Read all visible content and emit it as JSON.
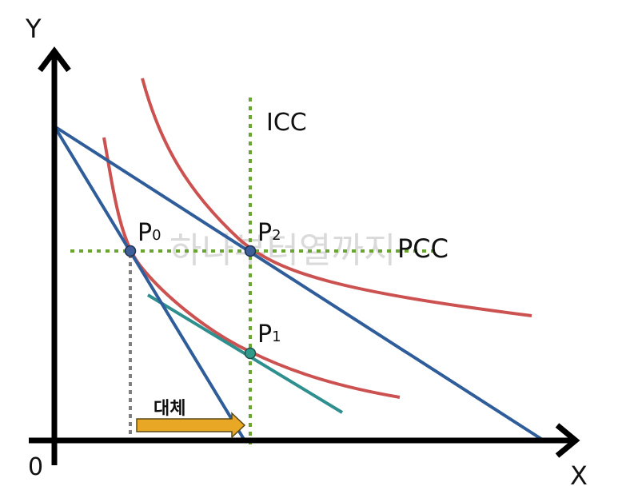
{
  "axes": {
    "y_label": "Y",
    "x_label": "X",
    "origin_label": "0"
  },
  "curves": {
    "icc_label": "ICC",
    "pcc_label": "PCC"
  },
  "points": {
    "p0": {
      "main": "P",
      "sub": "0"
    },
    "p1": {
      "main": "P",
      "sub": "1"
    },
    "p2": {
      "main": "P",
      "sub": "2"
    }
  },
  "arrow": {
    "label": "대체"
  },
  "watermark": "하나부터열까지",
  "colors": {
    "axis": "#000000",
    "budget_line": "#2f5d9a",
    "indifference_curve": "#cc5151",
    "guide_dotted": "#6aa532",
    "drop_line": "#808080",
    "compensated_line": "#2f8f8f",
    "arrow_fill": "#e8a825",
    "arrow_stroke": "#5a4a1a",
    "point_blue": "#3d5f9a",
    "point_teal": "#2f9a8a"
  }
}
